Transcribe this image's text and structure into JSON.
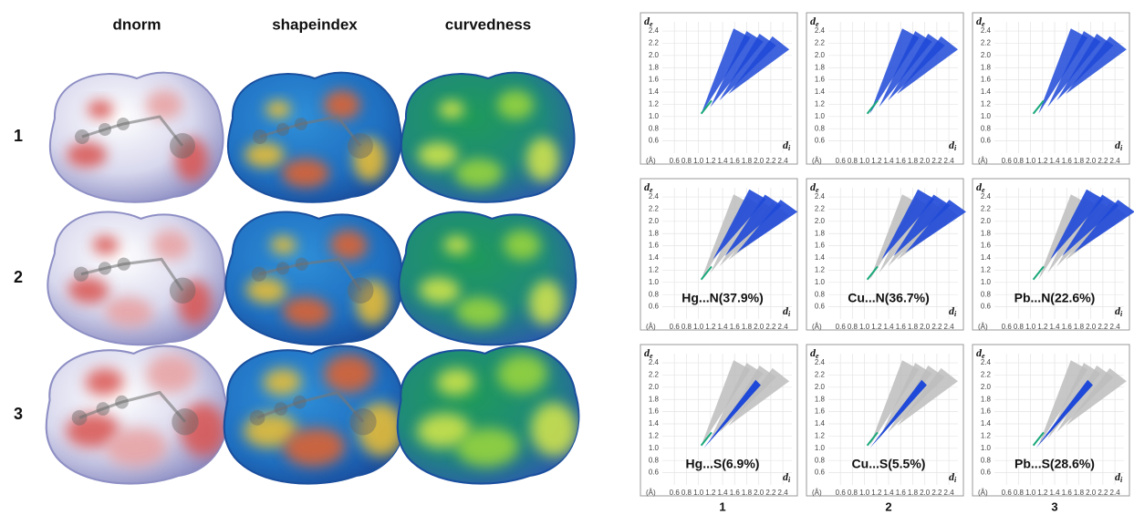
{
  "surfaces": {
    "columns": [
      "dnorm",
      "shapeindex",
      "curvedness"
    ],
    "rows": [
      "1",
      "2",
      "3"
    ]
  },
  "fingerprints": {
    "axis": {
      "lim": [
        0.4,
        2.55
      ],
      "ticks": [
        0.6,
        0.8,
        {
          "value": 1.0,
          "label": "1.0"
        },
        1.2,
        1.4,
        1.6,
        1.8,
        {
          "value": 2.0,
          "label": "2.0"
        },
        2.2,
        2.4
      ],
      "unit": "(Å)",
      "x_label": "d",
      "x_sub": "i",
      "y_label": "d",
      "y_sub": "e"
    },
    "annotated_rows": [
      [
        "Hg...N(37.9%)",
        "Cu...N(36.7%)",
        "Pb...N(22.6%)"
      ],
      [
        "Hg...S(6.9%)",
        "Cu...S(5.5%)",
        "Pb...S(28.6%)"
      ]
    ],
    "columns": [
      "1",
      "2",
      "3"
    ]
  }
}
